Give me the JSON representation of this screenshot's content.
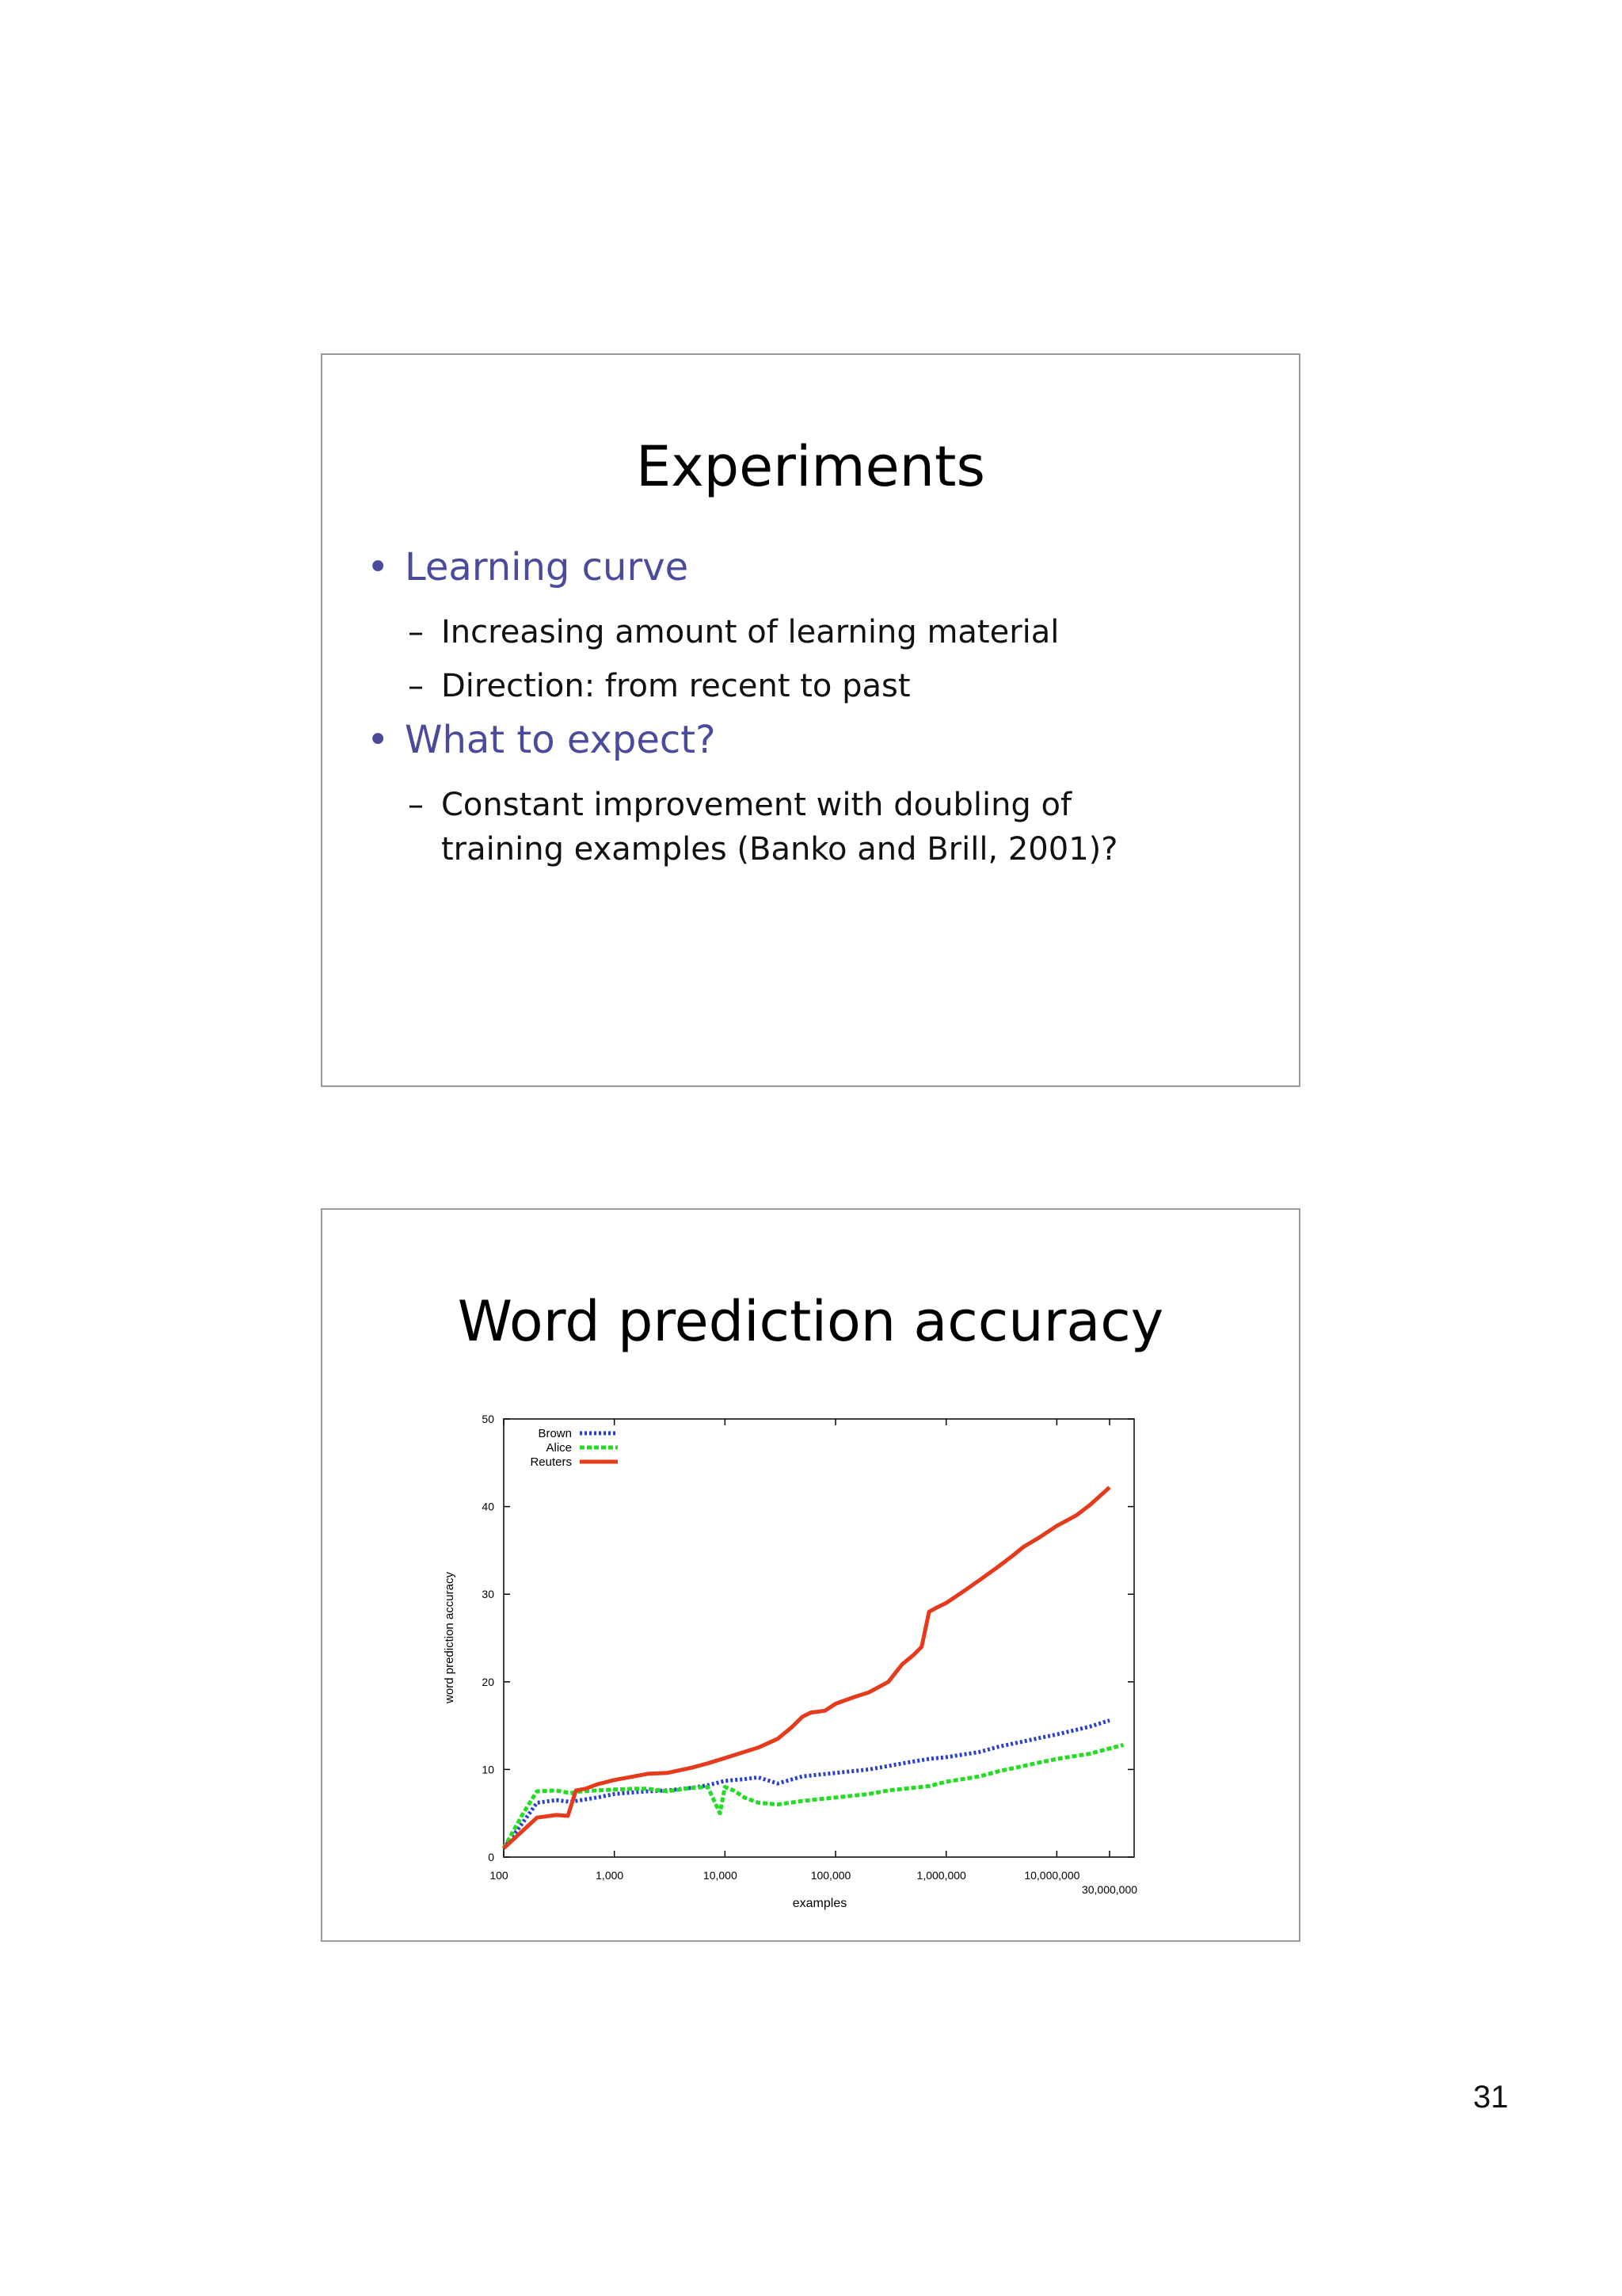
{
  "page_number": "31",
  "slide1": {
    "title": "Experiments",
    "bullets": [
      {
        "text": "Learning curve",
        "subs": [
          "Increasing amount of learning material",
          "Direction: from recent to past"
        ]
      },
      {
        "text": "What to expect?",
        "subs": [
          "Constant improvement with doubling of",
          "training examples (Banko and Brill, 2001)?"
        ]
      }
    ],
    "bullet_color": "#4b4b9c"
  },
  "slide2": {
    "title": "Word prediction accuracy"
  },
  "chart_data": {
    "type": "line",
    "title": "",
    "xlabel": "examples",
    "ylabel": "word prediction accuracy",
    "x_scale": "log",
    "xlim": [
      100,
      50000000
    ],
    "ylim": [
      0,
      50
    ],
    "x_ticks": [
      {
        "value": 100,
        "label": "100"
      },
      {
        "value": 1000,
        "label": "1,000"
      },
      {
        "value": 10000,
        "label": "10,000"
      },
      {
        "value": 100000,
        "label": "100,000"
      },
      {
        "value": 1000000,
        "label": "1,000,000"
      },
      {
        "value": 10000000,
        "label": "10,000,000"
      },
      {
        "value": 30000000,
        "label": "30,000,000"
      }
    ],
    "y_ticks": [
      0,
      10,
      20,
      30,
      40,
      50
    ],
    "grid": false,
    "legend_position": "top-left",
    "series": [
      {
        "name": "Brown",
        "color": "#2a3fd0",
        "style": "dotted",
        "x": [
          100,
          150,
          200,
          300,
          400,
          500,
          700,
          1000,
          1500,
          2000,
          3000,
          5000,
          7000,
          10000,
          15000,
          20000,
          30000,
          50000,
          70000,
          100000,
          200000,
          300000,
          500000,
          700000,
          1000000,
          2000000,
          3000000,
          5000000,
          7000000,
          10000000,
          20000000,
          30000000
        ],
        "y": [
          1.0,
          4.0,
          6.2,
          6.5,
          6.3,
          6.5,
          6.8,
          7.2,
          7.4,
          7.5,
          7.6,
          7.9,
          8.2,
          8.7,
          8.9,
          9.1,
          8.4,
          9.2,
          9.4,
          9.6,
          10.0,
          10.4,
          10.9,
          11.2,
          11.4,
          12.0,
          12.6,
          13.2,
          13.6,
          14.0,
          14.9,
          15.6
        ]
      },
      {
        "name": "Alice",
        "color": "#22dd22",
        "style": "dashed",
        "x": [
          100,
          150,
          200,
          300,
          400,
          500,
          700,
          1000,
          1500,
          2000,
          3000,
          5000,
          7000,
          9000,
          10000,
          12000,
          15000,
          20000,
          30000,
          50000,
          70000,
          100000,
          200000,
          300000,
          500000,
          700000,
          1000000,
          2000000,
          3000000,
          5000000,
          7000000,
          10000000,
          20000000,
          30000000,
          40000000
        ],
        "y": [
          1.0,
          5.0,
          7.5,
          7.6,
          7.3,
          7.5,
          7.6,
          7.7,
          7.8,
          7.8,
          7.5,
          7.9,
          8.0,
          5.0,
          8.0,
          7.6,
          6.8,
          6.2,
          6.0,
          6.4,
          6.6,
          6.8,
          7.2,
          7.6,
          7.9,
          8.1,
          8.6,
          9.2,
          9.8,
          10.4,
          10.8,
          11.2,
          11.8,
          12.4,
          12.8
        ]
      },
      {
        "name": "Reuters",
        "color": "#e63a1c",
        "style": "solid",
        "x": [
          100,
          200,
          300,
          380,
          450,
          550,
          700,
          1000,
          1500,
          2000,
          3000,
          5000,
          7000,
          10000,
          15000,
          20000,
          30000,
          40000,
          50000,
          60000,
          70000,
          80000,
          100000,
          150000,
          200000,
          300000,
          400000,
          500000,
          600000,
          700000,
          800000,
          1000000,
          1500000,
          2000000,
          3000000,
          4000000,
          5000000,
          7000000,
          10000000,
          15000000,
          20000000,
          30000000
        ],
        "y": [
          1.0,
          4.5,
          4.8,
          4.7,
          7.6,
          7.8,
          8.3,
          8.8,
          9.2,
          9.5,
          9.6,
          10.2,
          10.7,
          11.3,
          12.0,
          12.5,
          13.5,
          14.8,
          16.0,
          16.5,
          16.6,
          16.7,
          17.5,
          18.3,
          18.8,
          20.0,
          22.0,
          23.0,
          24.0,
          28.0,
          28.4,
          29.0,
          30.5,
          31.6,
          33.2,
          34.4,
          35.4,
          36.5,
          37.8,
          39.0,
          40.2,
          42.2
        ]
      }
    ]
  }
}
